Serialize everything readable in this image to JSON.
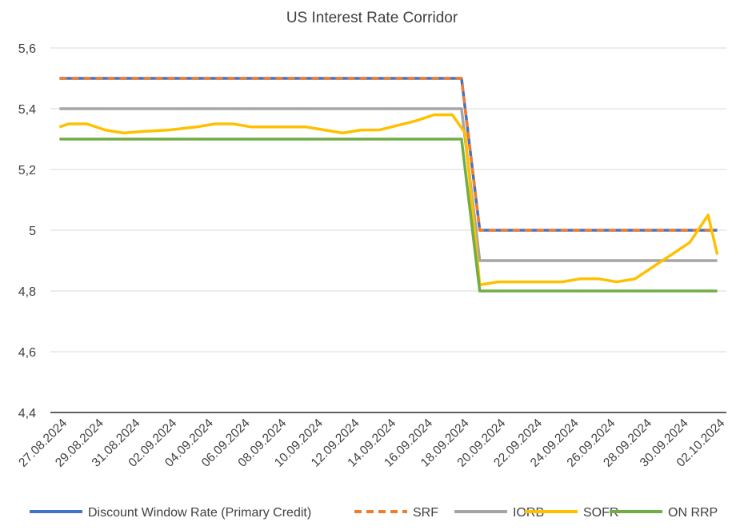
{
  "chart_data": {
    "type": "line",
    "title": "US Interest Rate Corridor",
    "xlabel": "",
    "ylabel": "",
    "ylim": [
      4.4,
      5.6
    ],
    "yticks": [
      4.4,
      4.6,
      4.8,
      5.0,
      5.2,
      5.4,
      5.6
    ],
    "ytick_labels": [
      "4,4",
      "4,6",
      "4,8",
      "5",
      "5,2",
      "5,4",
      "5,6"
    ],
    "grid": true,
    "legend_position": "bottom",
    "x": [
      "27.08.2024",
      "28.08.2024",
      "29.08.2024",
      "30.08.2024",
      "31.08.2024",
      "01.09.2024",
      "02.09.2024",
      "03.09.2024",
      "04.09.2024",
      "05.09.2024",
      "06.09.2024",
      "07.09.2024",
      "08.09.2024",
      "09.09.2024",
      "10.09.2024",
      "11.09.2024",
      "12.09.2024",
      "13.09.2024",
      "14.09.2024",
      "15.09.2024",
      "16.09.2024",
      "17.09.2024",
      "18.09.2024",
      "19.09.2024",
      "20.09.2024",
      "21.09.2024",
      "22.09.2024",
      "23.09.2024",
      "24.09.2024",
      "25.09.2024",
      "26.09.2024",
      "27.09.2024",
      "28.09.2024",
      "29.09.2024",
      "30.09.2024",
      "01.10.2024",
      "02.10.2024"
    ],
    "xtick_labels": [
      "27.08.2024",
      "29.08.2024",
      "31.08.2024",
      "02.09.2024",
      "04.09.2024",
      "06.09.2024",
      "08.09.2024",
      "10.09.2024",
      "12.09.2024",
      "14.09.2024",
      "16.09.2024",
      "18.09.2024",
      "20.09.2024",
      "22.09.2024",
      "24.09.2024",
      "26.09.2024",
      "28.09.2024",
      "30.09.2024",
      "02.10.2024"
    ],
    "series": [
      {
        "name": "Discount Window Rate (Primary Credit)",
        "color": "#4472C4",
        "style": "solid",
        "points": [
          [
            0,
            5.5
          ],
          [
            22,
            5.5
          ],
          [
            23,
            5.0
          ],
          [
            36,
            5.0
          ]
        ]
      },
      {
        "name": "SRF",
        "color": "#ED7D31",
        "style": "dashed",
        "points": [
          [
            0,
            5.5
          ],
          [
            22,
            5.5
          ],
          [
            23,
            5.0
          ],
          [
            36,
            5.0
          ]
        ]
      },
      {
        "name": "IORB",
        "color": "#A5A5A5",
        "style": "solid",
        "points": [
          [
            0,
            5.4
          ],
          [
            22,
            5.4
          ],
          [
            23,
            4.9
          ],
          [
            36,
            4.9
          ]
        ]
      },
      {
        "name": "SOFR",
        "color": "#FFC000",
        "style": "solid",
        "points": [
          [
            0,
            5.34
          ],
          [
            0.5,
            5.35
          ],
          [
            1.5,
            5.35
          ],
          [
            2.5,
            5.33
          ],
          [
            3.5,
            5.32
          ],
          [
            4.5,
            5.325
          ],
          [
            6,
            5.33
          ],
          [
            7.5,
            5.34
          ],
          [
            8.5,
            5.35
          ],
          [
            9.5,
            5.35
          ],
          [
            10.5,
            5.34
          ],
          [
            12,
            5.34
          ],
          [
            13.5,
            5.34
          ],
          [
            14.5,
            5.33
          ],
          [
            15.5,
            5.32
          ],
          [
            16.5,
            5.33
          ],
          [
            17.5,
            5.33
          ],
          [
            18.5,
            5.345
          ],
          [
            19.5,
            5.36
          ],
          [
            20.5,
            5.38
          ],
          [
            21.5,
            5.38
          ],
          [
            22.2,
            5.32
          ],
          [
            23,
            4.82
          ],
          [
            24,
            4.83
          ],
          [
            26,
            4.83
          ],
          [
            27.5,
            4.83
          ],
          [
            28.5,
            4.84
          ],
          [
            29.5,
            4.84
          ],
          [
            30.5,
            4.83
          ],
          [
            31.5,
            4.84
          ],
          [
            32.5,
            4.88
          ],
          [
            33.5,
            4.92
          ],
          [
            34.5,
            4.96
          ],
          [
            35.5,
            5.05
          ],
          [
            36,
            4.92
          ]
        ]
      },
      {
        "name": "ON RRP",
        "color": "#70AD47",
        "style": "solid",
        "points": [
          [
            0,
            5.3
          ],
          [
            22,
            5.3
          ],
          [
            23,
            4.8
          ],
          [
            36,
            4.8
          ]
        ]
      }
    ]
  }
}
